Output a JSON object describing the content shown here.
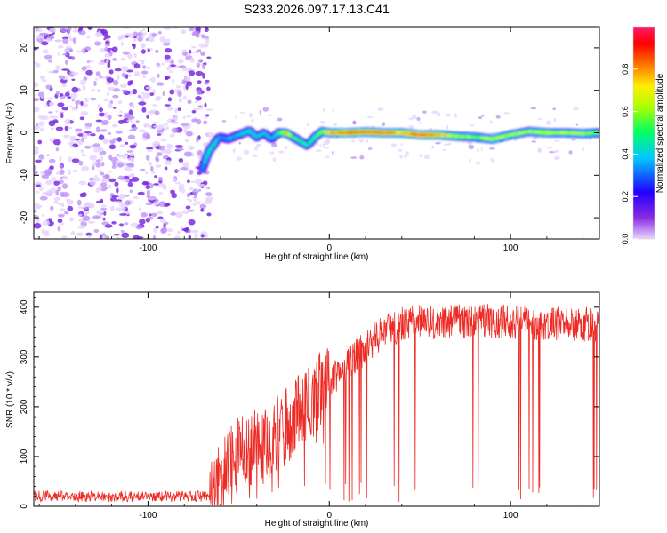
{
  "title": "S233.2026.097.17.13.C41",
  "chart_data": [
    {
      "type": "heatmap",
      "name": "spectrogram",
      "xlabel": "Height of straight line (km)",
      "ylabel": "Frequency (Hz)",
      "xlim": [
        -163,
        149
      ],
      "ylim": [
        -25,
        25
      ],
      "xticks": [
        -100,
        0,
        100
      ],
      "yticks": [
        -20,
        -10,
        0,
        10,
        20
      ],
      "colorbar": {
        "label": "Normalized spectral amplitude",
        "range": [
          0,
          1
        ],
        "ticks": [
          "0.0",
          "0.2",
          "0.4",
          "0.6",
          "0.8"
        ],
        "colors": [
          "#e9d6ff",
          "#8a2be2",
          "#2200ff",
          "#00c8ff",
          "#00ff66",
          "#aaff00",
          "#ffee00",
          "#ff7700",
          "#ff0000",
          "#ff1a6e"
        ]
      },
      "noise_region_km": [
        -163,
        -66
      ],
      "ridge": {
        "x": [
          -70,
          -68,
          -66,
          -64,
          -62,
          -60,
          -56,
          -50,
          -44,
          -40,
          -36,
          -32,
          -28,
          -24,
          -20,
          -16,
          -12,
          -8,
          -4,
          0,
          10,
          20,
          30,
          40,
          50,
          60,
          70,
          80,
          90,
          100,
          110,
          120,
          130,
          140,
          149
        ],
        "freq": [
          -8.5,
          -6,
          -4,
          -3,
          -1.5,
          -1,
          -1.5,
          -0.5,
          0.5,
          -1,
          0,
          -1.5,
          0,
          0,
          -1,
          -2,
          -3,
          -1,
          0.3,
          0,
          0,
          0.2,
          0,
          0,
          -0.5,
          -0.5,
          -0.8,
          -1,
          -1.5,
          -0.5,
          0.3,
          0,
          0,
          -0.2,
          0
        ],
        "amplitude": [
          0.35,
          0.4,
          0.45,
          0.45,
          0.4,
          0.35,
          0.35,
          0.4,
          0.45,
          0.4,
          0.4,
          0.35,
          0.5,
          0.75,
          0.5,
          0.5,
          0.45,
          0.5,
          0.6,
          0.75,
          0.85,
          0.85,
          0.8,
          0.75,
          0.9,
          0.75,
          0.6,
          0.55,
          0.65,
          0.6,
          0.6,
          0.65,
          0.6,
          0.6,
          0.55
        ]
      }
    },
    {
      "type": "line",
      "name": "snr",
      "xlabel": "Height of straight line (km)",
      "ylabel": "SNR (10 * v/v)",
      "xlim": [
        -163,
        149
      ],
      "ylim": [
        0,
        430
      ],
      "xticks": [
        -100,
        0,
        100
      ],
      "yticks": [
        0,
        100,
        200,
        300,
        400
      ],
      "color": "#ee2a24",
      "profile": {
        "x": [
          -163,
          -66,
          -60,
          -50,
          -40,
          -30,
          -20,
          -10,
          0,
          10,
          20,
          30,
          40,
          50,
          60,
          80,
          100,
          120,
          149
        ],
        "mean": [
          20,
          20,
          60,
          100,
          120,
          140,
          175,
          215,
          250,
          285,
          320,
          350,
          365,
          370,
          370,
          372,
          370,
          368,
          365
        ]
      }
    }
  ]
}
